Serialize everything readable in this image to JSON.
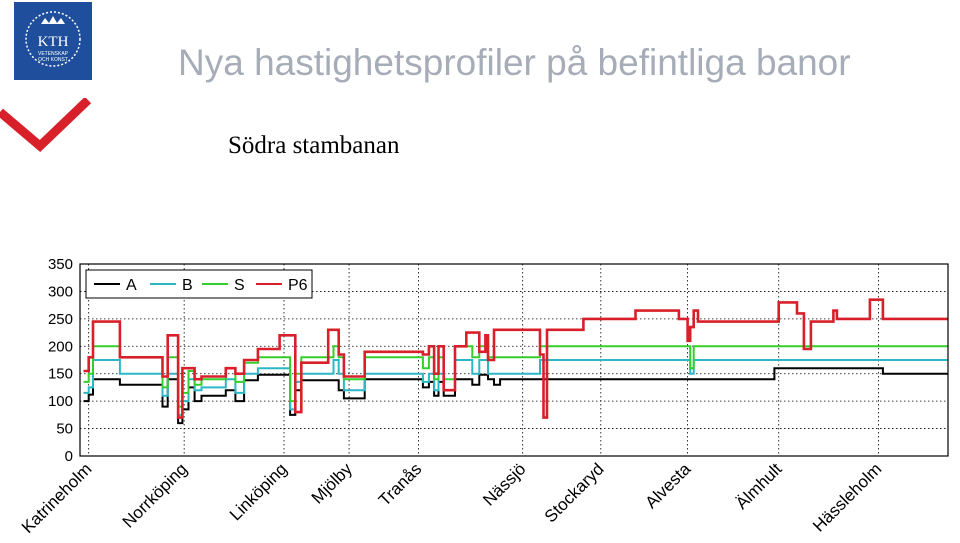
{
  "slide": {
    "logo_text": "KTH",
    "logo_subtext_1": "VETENSKAP",
    "logo_subtext_2": "OCH KONST",
    "logo_color": "#1f4f9c",
    "accent_red": "#d8202a",
    "title": "Nya hastighetsprofiler på befintliga banor",
    "subtitle": "Södra stambanan"
  },
  "chart_data": {
    "type": "line",
    "title": "",
    "xlabel": "",
    "ylabel": "",
    "ylim": [
      0,
      350
    ],
    "yticks": [
      0,
      50,
      100,
      150,
      200,
      250,
      300,
      350
    ],
    "xlim": [
      0,
      100
    ],
    "grid": true,
    "legend_position": "top-left",
    "stations": [
      {
        "name": "Katrineholm",
        "x": 1
      },
      {
        "name": "Norrköping",
        "x": 12
      },
      {
        "name": "Linköping",
        "x": 23.5
      },
      {
        "name": "Mjölby",
        "x": 31
      },
      {
        "name": "Tranås",
        "x": 39
      },
      {
        "name": "Nässjö",
        "x": 51
      },
      {
        "name": "Stockaryd",
        "x": 60
      },
      {
        "name": "Alvesta",
        "x": 70
      },
      {
        "name": "Älmhult",
        "x": 80.5
      },
      {
        "name": "Hässleholm",
        "x": 92
      }
    ],
    "series": [
      {
        "name": "A",
        "color": "#000000",
        "x": [
          0.4,
          1,
          1.5,
          4.3,
          4.6,
          9.2,
          9.5,
          10.1,
          10.5,
          11.3,
          11.8,
          12.5,
          13.2,
          14,
          15.4,
          16.8,
          17.3,
          17.9,
          18.9,
          20,
          20.5,
          23,
          24.2,
          24.8,
          25.5,
          28.6,
          29.2,
          29.8,
          30.4,
          32.8,
          33.5,
          39,
          39.5,
          40.2,
          40.8,
          41.3,
          41.9,
          43.2,
          43.7,
          44.5,
          45.2,
          46,
          46.7,
          47,
          47.7,
          48.4,
          53,
          60,
          70,
          70.3,
          70.7,
          80,
          80.4,
          91.4,
          92.5
        ],
        "y": [
          100,
          112,
          140,
          140,
          130,
          130,
          90,
          140,
          140,
          60,
          85,
          125,
          100,
          110,
          110,
          120,
          120,
          100,
          138,
          138,
          148,
          148,
          75,
          120,
          138,
          138,
          138,
          120,
          105,
          140,
          140,
          140,
          125,
          135,
          110,
          135,
          110,
          140,
          140,
          140,
          130,
          148,
          148,
          140,
          130,
          140,
          140,
          140,
          140,
          140,
          140,
          160,
          160,
          160,
          150
        ]
      },
      {
        "name": "B",
        "color": "#2bb7c5",
        "x": [
          0.4,
          1,
          1.5,
          4.3,
          4.6,
          9.2,
          9.5,
          10.1,
          10.5,
          11.3,
          11.8,
          12.5,
          13.2,
          14,
          15.4,
          16.8,
          17.3,
          17.9,
          18.9,
          20,
          20.5,
          23,
          24.2,
          24.8,
          25.5,
          28.6,
          29.2,
          29.8,
          30.4,
          32.8,
          33.5,
          39,
          39.5,
          40.2,
          40.8,
          41.3,
          41.9,
          43.2,
          43.7,
          44.5,
          45.2,
          46,
          46.7,
          47,
          47.7,
          48.4,
          53,
          60,
          70,
          70.3,
          70.7,
          80,
          80.4,
          91.4,
          92.5
        ],
        "y": [
          115,
          125,
          175,
          175,
          150,
          150,
          110,
          150,
          150,
          75,
          100,
          140,
          120,
          125,
          125,
          140,
          140,
          115,
          150,
          150,
          160,
          160,
          85,
          135,
          150,
          150,
          175,
          150,
          120,
          150,
          150,
          150,
          135,
          150,
          120,
          150,
          120,
          175,
          175,
          175,
          150,
          175,
          175,
          150,
          150,
          150,
          175,
          175,
          175,
          150,
          175,
          175,
          175,
          175,
          175
        ]
      },
      {
        "name": "S",
        "color": "#35cf2d",
        "x": [
          0.4,
          1,
          1.5,
          4.3,
          4.6,
          9.2,
          9.5,
          10.1,
          10.5,
          11.3,
          11.8,
          12.5,
          13.2,
          14,
          15.4,
          16.8,
          17.3,
          17.9,
          18.9,
          20,
          20.5,
          23,
          24.2,
          24.8,
          25.5,
          28.6,
          29.2,
          29.8,
          30.4,
          32.8,
          33.5,
          39,
          39.5,
          40.2,
          40.8,
          41.3,
          41.9,
          43.2,
          43.7,
          44.5,
          45.2,
          46,
          46.7,
          47,
          47.7,
          48.4,
          53,
          60,
          70,
          70.3,
          70.7,
          80,
          80.4,
          91.4,
          92.5
        ],
        "y": [
          135,
          150,
          200,
          200,
          180,
          180,
          125,
          180,
          180,
          90,
          115,
          155,
          130,
          140,
          140,
          160,
          160,
          135,
          170,
          170,
          180,
          180,
          100,
          150,
          180,
          180,
          200,
          180,
          140,
          180,
          180,
          180,
          160,
          180,
          140,
          180,
          140,
          200,
          200,
          200,
          180,
          200,
          200,
          180,
          180,
          180,
          200,
          200,
          200,
          160,
          200,
          200,
          200,
          200,
          200
        ]
      },
      {
        "name": "P6",
        "color": "#d8202a",
        "x": [
          0.4,
          1,
          1.5,
          4.3,
          4.6,
          9.2,
          9.5,
          10.1,
          10.5,
          11.3,
          11.8,
          12.5,
          13.2,
          14,
          15.4,
          16.8,
          17.3,
          17.9,
          18.9,
          20,
          20.5,
          23,
          24.2,
          24.8,
          25.5,
          28.6,
          29.2,
          29.8,
          30.4,
          32.8,
          33.5,
          39,
          39.5,
          40.2,
          40.8,
          41.3,
          41.9,
          43.2,
          43.7,
          44.5,
          45.2,
          46,
          46.7,
          47,
          47.7,
          48.4,
          53,
          53.4,
          53.8,
          58,
          64,
          66,
          69,
          70,
          70.3,
          70.7,
          71.2,
          78,
          80.5,
          82.6,
          83.4,
          84.2,
          86.8,
          87.2,
          91,
          92.5
        ],
        "y": [
          155,
          180,
          245,
          245,
          180,
          180,
          145,
          220,
          220,
          70,
          160,
          160,
          140,
          145,
          145,
          160,
          160,
          150,
          175,
          175,
          195,
          220,
          220,
          80,
          170,
          230,
          230,
          185,
          145,
          190,
          190,
          190,
          185,
          200,
          150,
          200,
          120,
          200,
          200,
          225,
          225,
          190,
          220,
          175,
          230,
          230,
          185,
          70,
          230,
          250,
          265,
          265,
          250,
          210,
          235,
          265,
          245,
          245,
          280,
          260,
          195,
          245,
          265,
          250,
          285,
          250
        ]
      }
    ]
  }
}
